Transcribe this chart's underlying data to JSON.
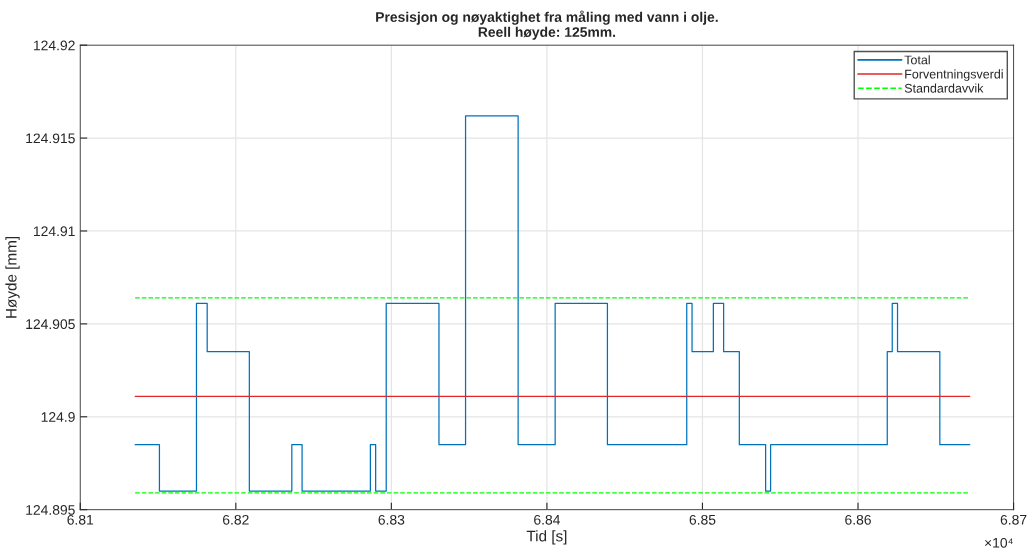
{
  "chart_data": {
    "type": "step",
    "title": "Presisjon og nøyaktighet fra måling med vann i olje.\nReell høyde: 125mm.",
    "xlabel": "Tid [s]",
    "ylabel": "Høyde [mm]",
    "series": [
      {
        "name": "Total",
        "color": "#0072bd",
        "x": [
          6.81353,
          6.81509,
          6.81747,
          6.81816,
          6.82087,
          6.8236,
          6.82426,
          6.82865,
          6.82899,
          6.82967,
          6.83306,
          6.83477,
          6.83815,
          6.84053,
          6.84389,
          6.84899,
          6.84933,
          6.8507,
          6.85136,
          6.85237,
          6.85406,
          6.85438,
          6.86188,
          6.8622,
          6.86254,
          6.86526,
          6.86718
        ],
        "values": [
          124.8985,
          124.896,
          124.9061,
          124.9035,
          124.896,
          124.8985,
          124.896,
          124.8985,
          124.896,
          124.9061,
          124.8985,
          124.9162,
          124.8985,
          124.9061,
          124.8985,
          124.9061,
          124.9035,
          124.9061,
          124.9035,
          124.8985,
          124.896,
          124.8985,
          124.9035,
          124.9061,
          124.9035,
          124.8985,
          124.8985
        ]
      },
      {
        "name": "Forventningsverdi",
        "type": "line",
        "color": "#e0282b",
        "line_style": "solid",
        "x": [
          6.81353,
          6.86718
        ],
        "values": [
          124.9011,
          124.9011
        ]
      },
      {
        "name": "Standardavvik",
        "type": "line",
        "color": "#00ff00",
        "line_style": "dashed",
        "x": [
          6.81353,
          6.86718
        ],
        "values": [
          124.9064,
          124.9064
        ]
      },
      {
        "type": "line",
        "color": "#00ff00",
        "line_style": "dashed",
        "x": [
          6.81353,
          6.86718
        ],
        "values": [
          124.8959,
          124.8959
        ]
      }
    ],
    "xlim": [
      6.81,
      6.87
    ],
    "xticks": [
      6.81,
      6.82,
      6.83,
      6.84,
      6.85,
      6.86,
      6.87
    ],
    "ylim": [
      124.895,
      124.92
    ],
    "yticks": [
      124.895,
      124.9,
      124.905,
      124.91,
      124.915,
      124.92
    ],
    "grid": true,
    "legend": "top right",
    "annotations": [
      "×10⁴"
    ]
  }
}
